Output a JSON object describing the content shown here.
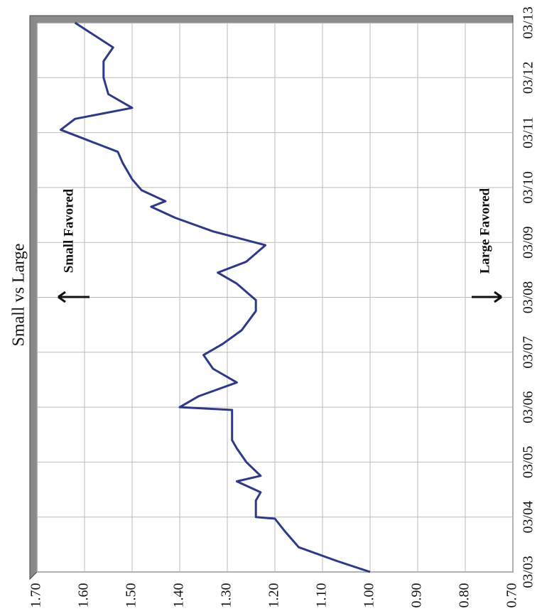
{
  "chart_data": {
    "type": "line",
    "title": "Small vs Large",
    "annotations": [
      "Small Favored",
      "Large Favored"
    ],
    "x": [
      3.0,
      3.2,
      3.45,
      3.75,
      3.97,
      4.0,
      4.3,
      4.45,
      4.65,
      4.75,
      5.0,
      5.25,
      5.4,
      5.95,
      6.0,
      6.2,
      6.45,
      6.7,
      6.95,
      7.15,
      7.4,
      7.75,
      7.95,
      8.25,
      8.45,
      8.65,
      8.95,
      9.2,
      9.45,
      9.65,
      9.75,
      9.95,
      10.15,
      10.45,
      10.65,
      10.85,
      11.05,
      11.25,
      11.45,
      11.7,
      12.0,
      12.3,
      12.55,
      13.0
    ],
    "series": [
      {
        "color": "#2e3a87",
        "values": [
          1.0,
          1.07,
          1.15,
          1.18,
          1.2,
          1.24,
          1.24,
          1.23,
          1.28,
          1.23,
          1.26,
          1.28,
          1.29,
          1.29,
          1.4,
          1.36,
          1.28,
          1.33,
          1.35,
          1.31,
          1.27,
          1.24,
          1.24,
          1.28,
          1.32,
          1.26,
          1.22,
          1.33,
          1.41,
          1.46,
          1.43,
          1.48,
          1.5,
          1.52,
          1.53,
          1.59,
          1.65,
          1.62,
          1.5,
          1.55,
          1.56,
          1.56,
          1.54,
          1.62
        ]
      }
    ],
    "xlim": [
      3,
      13
    ],
    "xticks": [
      {
        "value": 3,
        "label": "03/03"
      },
      {
        "value": 4,
        "label": "03/04"
      },
      {
        "value": 5,
        "label": "03/05"
      },
      {
        "value": 6,
        "label": "03/06"
      },
      {
        "value": 7,
        "label": "03/07"
      },
      {
        "value": 8,
        "label": "03/08"
      },
      {
        "value": 9,
        "label": "03/09"
      },
      {
        "value": 10,
        "label": "03/10"
      },
      {
        "value": 11,
        "label": "03/11"
      },
      {
        "value": 12,
        "label": "03/12"
      },
      {
        "value": 13,
        "label": "03/13"
      }
    ],
    "ylim": [
      0.7,
      1.7
    ],
    "yticks": [
      {
        "value": 0.7,
        "label": "0.70"
      },
      {
        "value": 0.8,
        "label": "0.80"
      },
      {
        "value": 0.9,
        "label": "0.90"
      },
      {
        "value": 1.0,
        "label": "1.00"
      },
      {
        "value": 1.1,
        "label": "1.10"
      },
      {
        "value": 1.2,
        "label": "1.20"
      },
      {
        "value": 1.3,
        "label": "1.30"
      },
      {
        "value": 1.4,
        "label": "1.40"
      },
      {
        "value": 1.5,
        "label": "1.50"
      },
      {
        "value": 1.6,
        "label": "1.60"
      },
      {
        "value": 1.7,
        "label": "1.70"
      }
    ],
    "grid": true
  }
}
